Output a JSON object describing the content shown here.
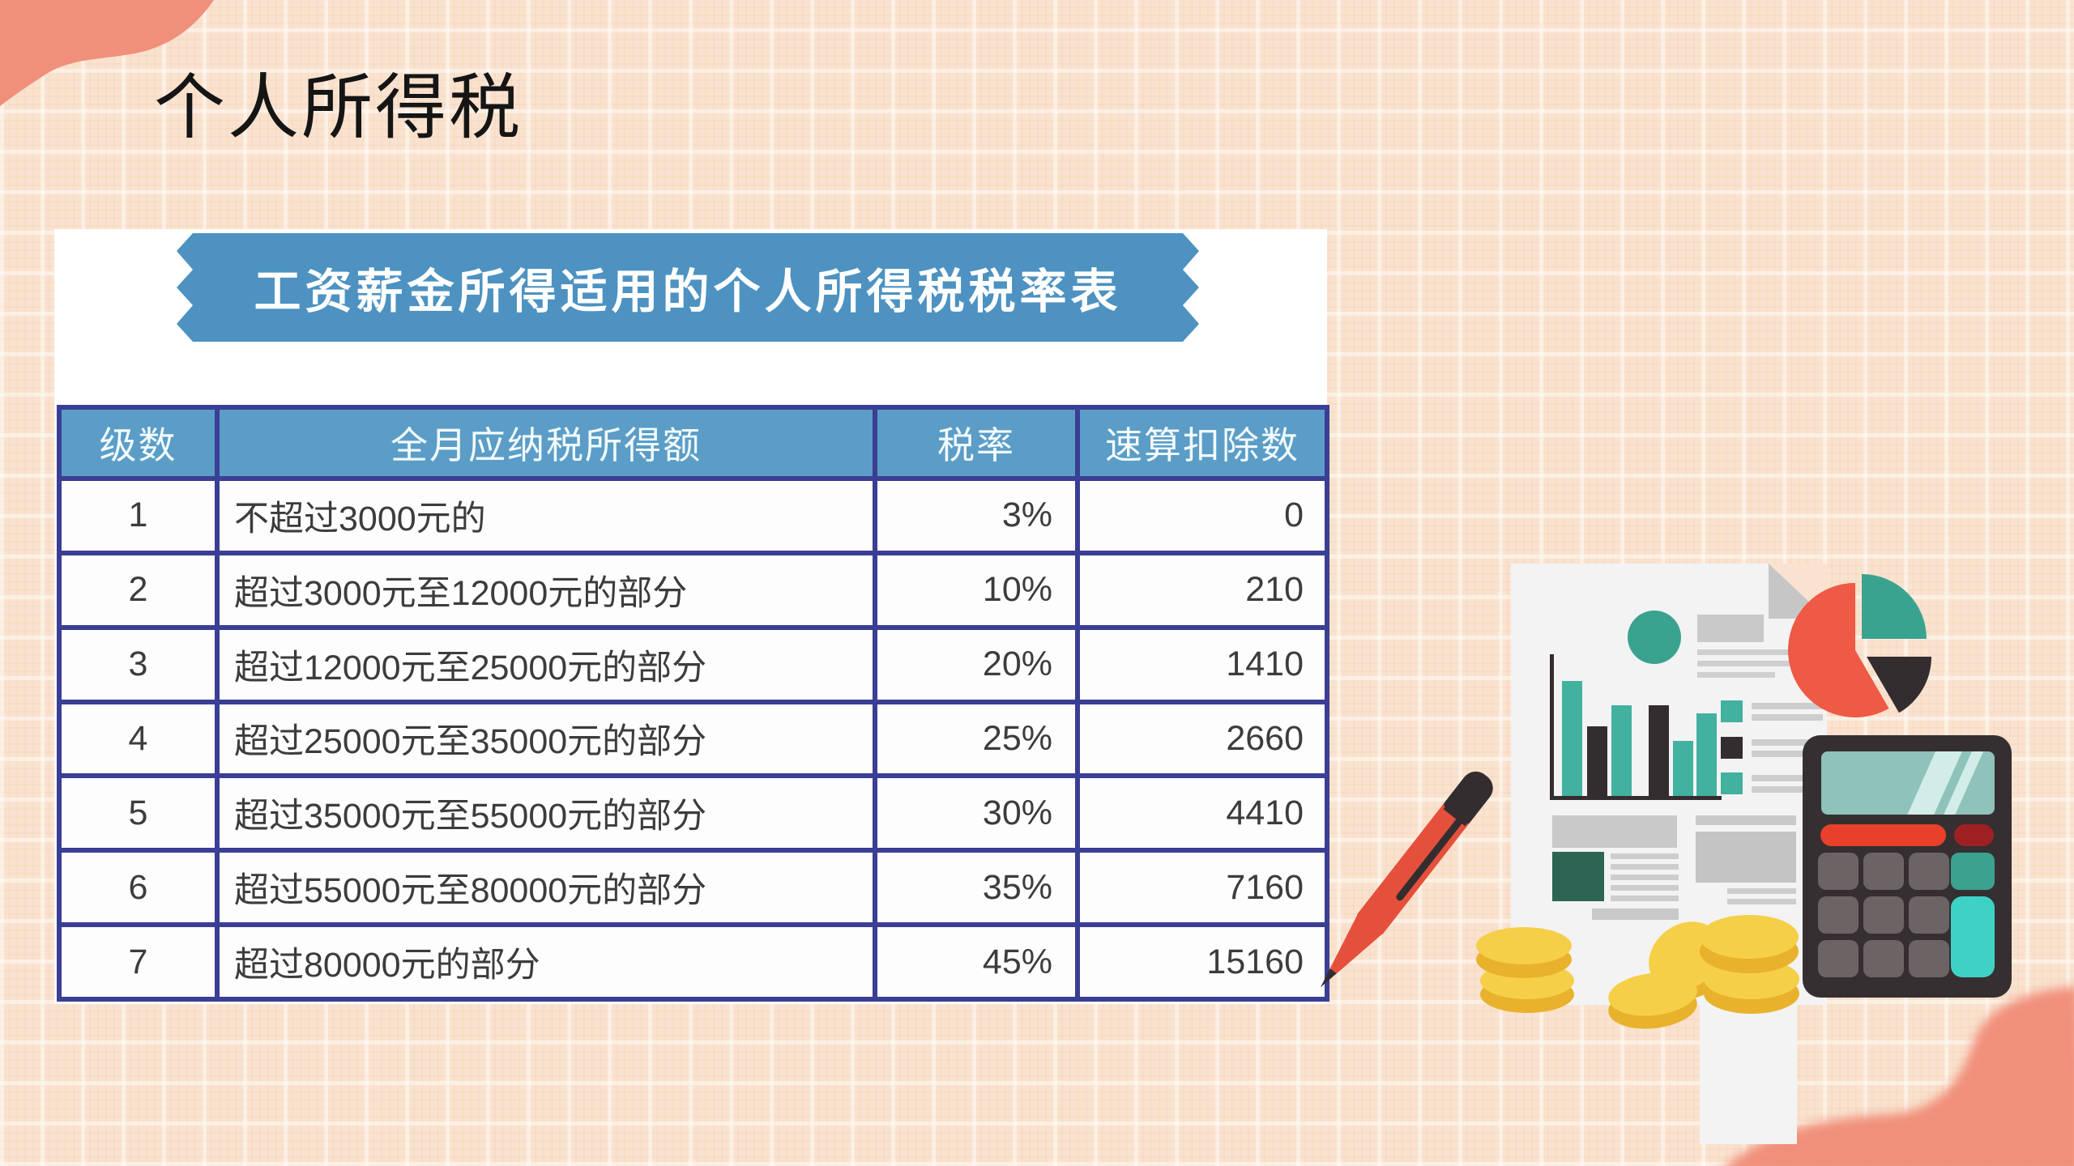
{
  "slide": {
    "title": "个人所得税"
  },
  "panel": {
    "banner_title": "工资薪金所得适用的个人所得税税率表",
    "table": {
      "columns": [
        "级数",
        "全月应纳税所得额",
        "税率",
        "速算扣除数"
      ],
      "rows": [
        [
          "1",
          "不超过3000元的",
          "3%",
          "0"
        ],
        [
          "2",
          "超过3000元至12000元的部分",
          "10%",
          "210"
        ],
        [
          "3",
          "超过12000元至25000元的部分",
          "20%",
          "1410"
        ],
        [
          "4",
          "超过25000元至35000元的部分",
          "25%",
          "2660"
        ],
        [
          "5",
          "超过35000元至55000元的部分",
          "30%",
          "4410"
        ],
        [
          "6",
          "超过55000元至80000元的部分",
          "35%",
          "7160"
        ],
        [
          "7",
          "超过80000元的部分",
          "45%",
          "15160"
        ]
      ]
    }
  },
  "colors": {
    "background": "#f9e2cf",
    "corner_blob": "#f0907b",
    "banner_blue": "#4d92c1",
    "table_header_blue": "#5b9dc6",
    "table_border_navy": "#3a3e94",
    "cell_text": "#3c3c3c",
    "accent_teal": "#3aa390",
    "accent_red": "#ee5a45",
    "accent_dark": "#332d2f",
    "coin_gold": "#f6cf48",
    "calculator_cyan": "#3ed2c6"
  }
}
